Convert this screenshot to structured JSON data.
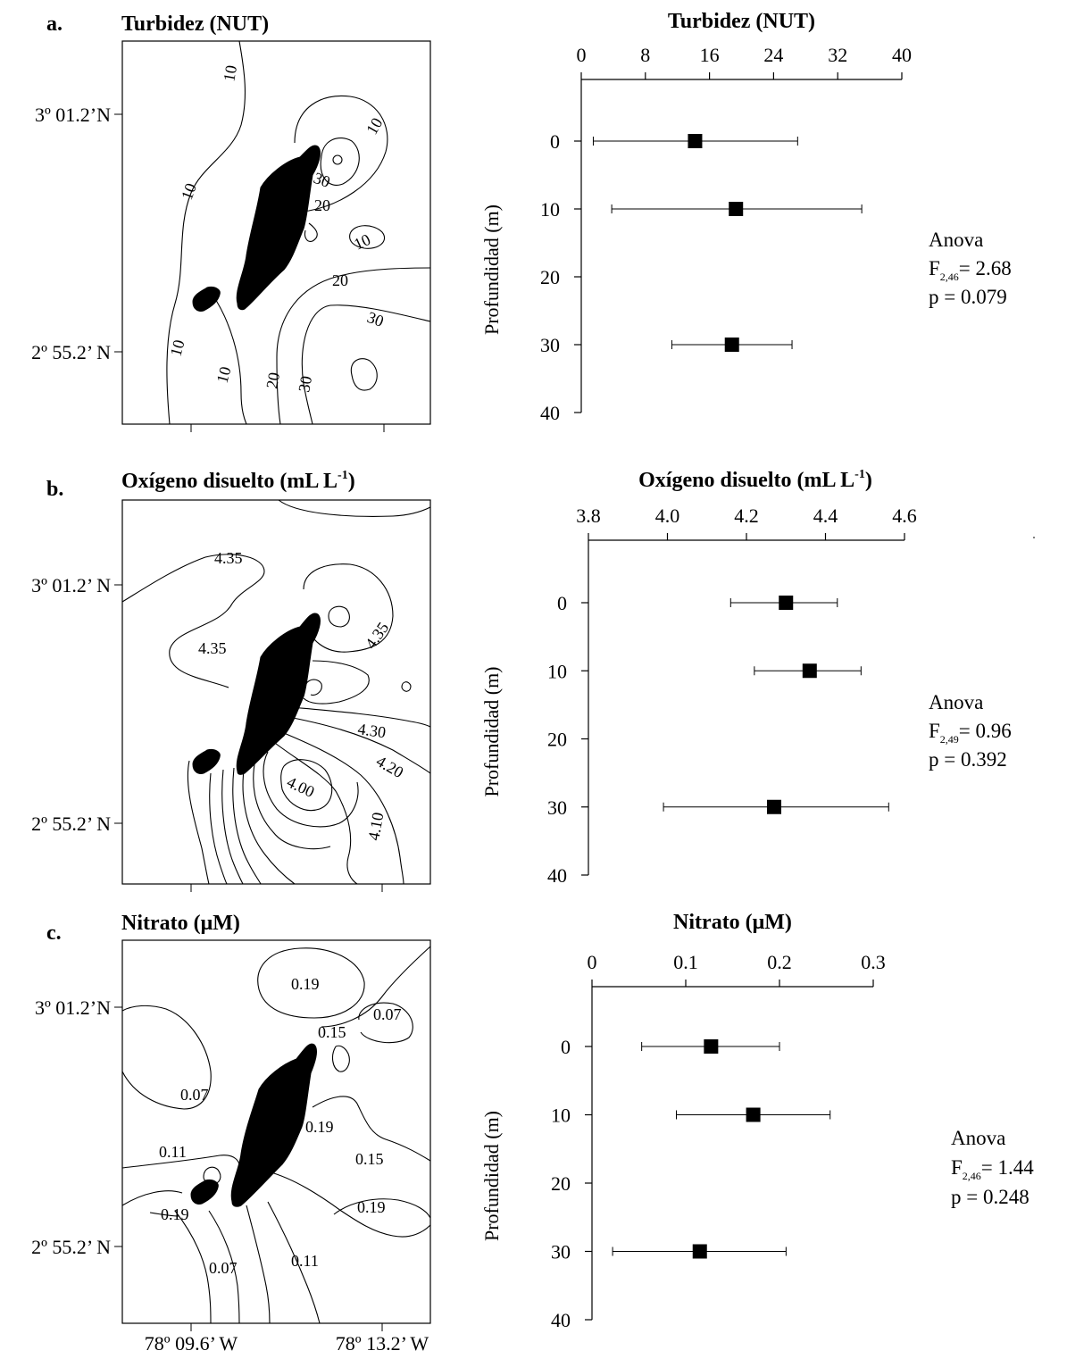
{
  "panels": [
    {
      "label": "a.",
      "map": {
        "title": "Turbidez (NUT)",
        "lat_top": "3º 01.2’N",
        "lat_bottom": "2º 55.2’ N",
        "contour_labels": [
          "10",
          "10",
          "10",
          "10",
          "10",
          "10",
          "30",
          "20",
          "20",
          "30",
          "20",
          "30"
        ]
      },
      "anova": {
        "line1": "Anova",
        "F": "F",
        "sub": "2,46",
        "Fval": "= 2.68",
        "p": "p = 0.079"
      }
    },
    {
      "label": "b.",
      "map": {
        "title": "Oxígeno disuelto (mL L",
        "title_sup": "-1",
        "title_end": ")",
        "lat_top": "3º 01.2’ N",
        "lat_bottom": "2º 55.2’ N",
        "contour_labels": [
          "4.35",
          "4.35",
          "4.35",
          "4.30",
          "4.20",
          "4.00",
          "4.10"
        ]
      },
      "anova": {
        "line1": "Anova",
        "F": "F",
        "sub": "2,49",
        "Fval": "= 0.96",
        "p": "p = 0.392"
      }
    },
    {
      "label": "c.",
      "map": {
        "title": "Nitrato (μM)",
        "lat_top": "3º 01.2’N",
        "lat_bottom": "2º 55.2’ N",
        "lon_left": "78º 09.6’ W",
        "lon_right": "78º 13.2’ W",
        "contour_labels": [
          "0.19",
          "0.15",
          "0.07",
          "0.07",
          "0.19",
          "0.11",
          "0.15",
          "0.19",
          "0.19",
          "0.07",
          "0.11"
        ]
      },
      "anova": {
        "line1": "Anova",
        "F": "F",
        "sub": "2,46",
        "Fval": "= 1.44",
        "p": "p = 0.248"
      }
    }
  ],
  "chart_data": [
    {
      "type": "scatter",
      "title": "Turbidez (NUT)",
      "xlabel": "",
      "ylabel": "Profundidad (m)",
      "xlim": [
        0,
        40
      ],
      "ylim": [
        40,
        0
      ],
      "x_ticks": [
        "0",
        "8",
        "16",
        "24",
        "32",
        "40"
      ],
      "y_ticks": [
        "0",
        "10",
        "20",
        "30",
        "40"
      ],
      "points": [
        {
          "depth": 0,
          "mean": 14.2,
          "low": 1.5,
          "high": 27.0
        },
        {
          "depth": 10,
          "mean": 19.3,
          "low": 3.8,
          "high": 35.0
        },
        {
          "depth": 30,
          "mean": 18.8,
          "low": 11.3,
          "high": 26.3
        }
      ]
    },
    {
      "type": "scatter",
      "title": "Oxígeno disuelto (mL L",
      "title_sup": "-1",
      "title_end": ")",
      "xlabel": "",
      "ylabel": "Profundidad (m)",
      "xlim": [
        3.8,
        4.6
      ],
      "ylim": [
        40,
        0
      ],
      "x_ticks": [
        "3.8",
        "4.0",
        "4.2",
        "4.4",
        "4.6"
      ],
      "y_ticks": [
        "0",
        "10",
        "20",
        "30",
        "40"
      ],
      "points": [
        {
          "depth": 0,
          "mean": 4.3,
          "low": 4.16,
          "high": 4.43
        },
        {
          "depth": 10,
          "mean": 4.36,
          "low": 4.22,
          "high": 4.49
        },
        {
          "depth": 30,
          "mean": 4.27,
          "low": 3.99,
          "high": 4.56
        }
      ]
    },
    {
      "type": "scatter",
      "title": "Nitrato (μM)",
      "xlabel": "",
      "ylabel": "Profundidad (m)",
      "xlim": [
        0,
        0.3
      ],
      "ylim": [
        40,
        0
      ],
      "x_ticks": [
        "0",
        "0.1",
        "0.2",
        "0.3"
      ],
      "y_ticks": [
        "0",
        "10",
        "20",
        "30",
        "40"
      ],
      "points": [
        {
          "depth": 0,
          "mean": 0.127,
          "low": 0.053,
          "high": 0.2
        },
        {
          "depth": 10,
          "mean": 0.172,
          "low": 0.09,
          "high": 0.254
        },
        {
          "depth": 30,
          "mean": 0.115,
          "low": 0.022,
          "high": 0.207
        }
      ]
    }
  ]
}
